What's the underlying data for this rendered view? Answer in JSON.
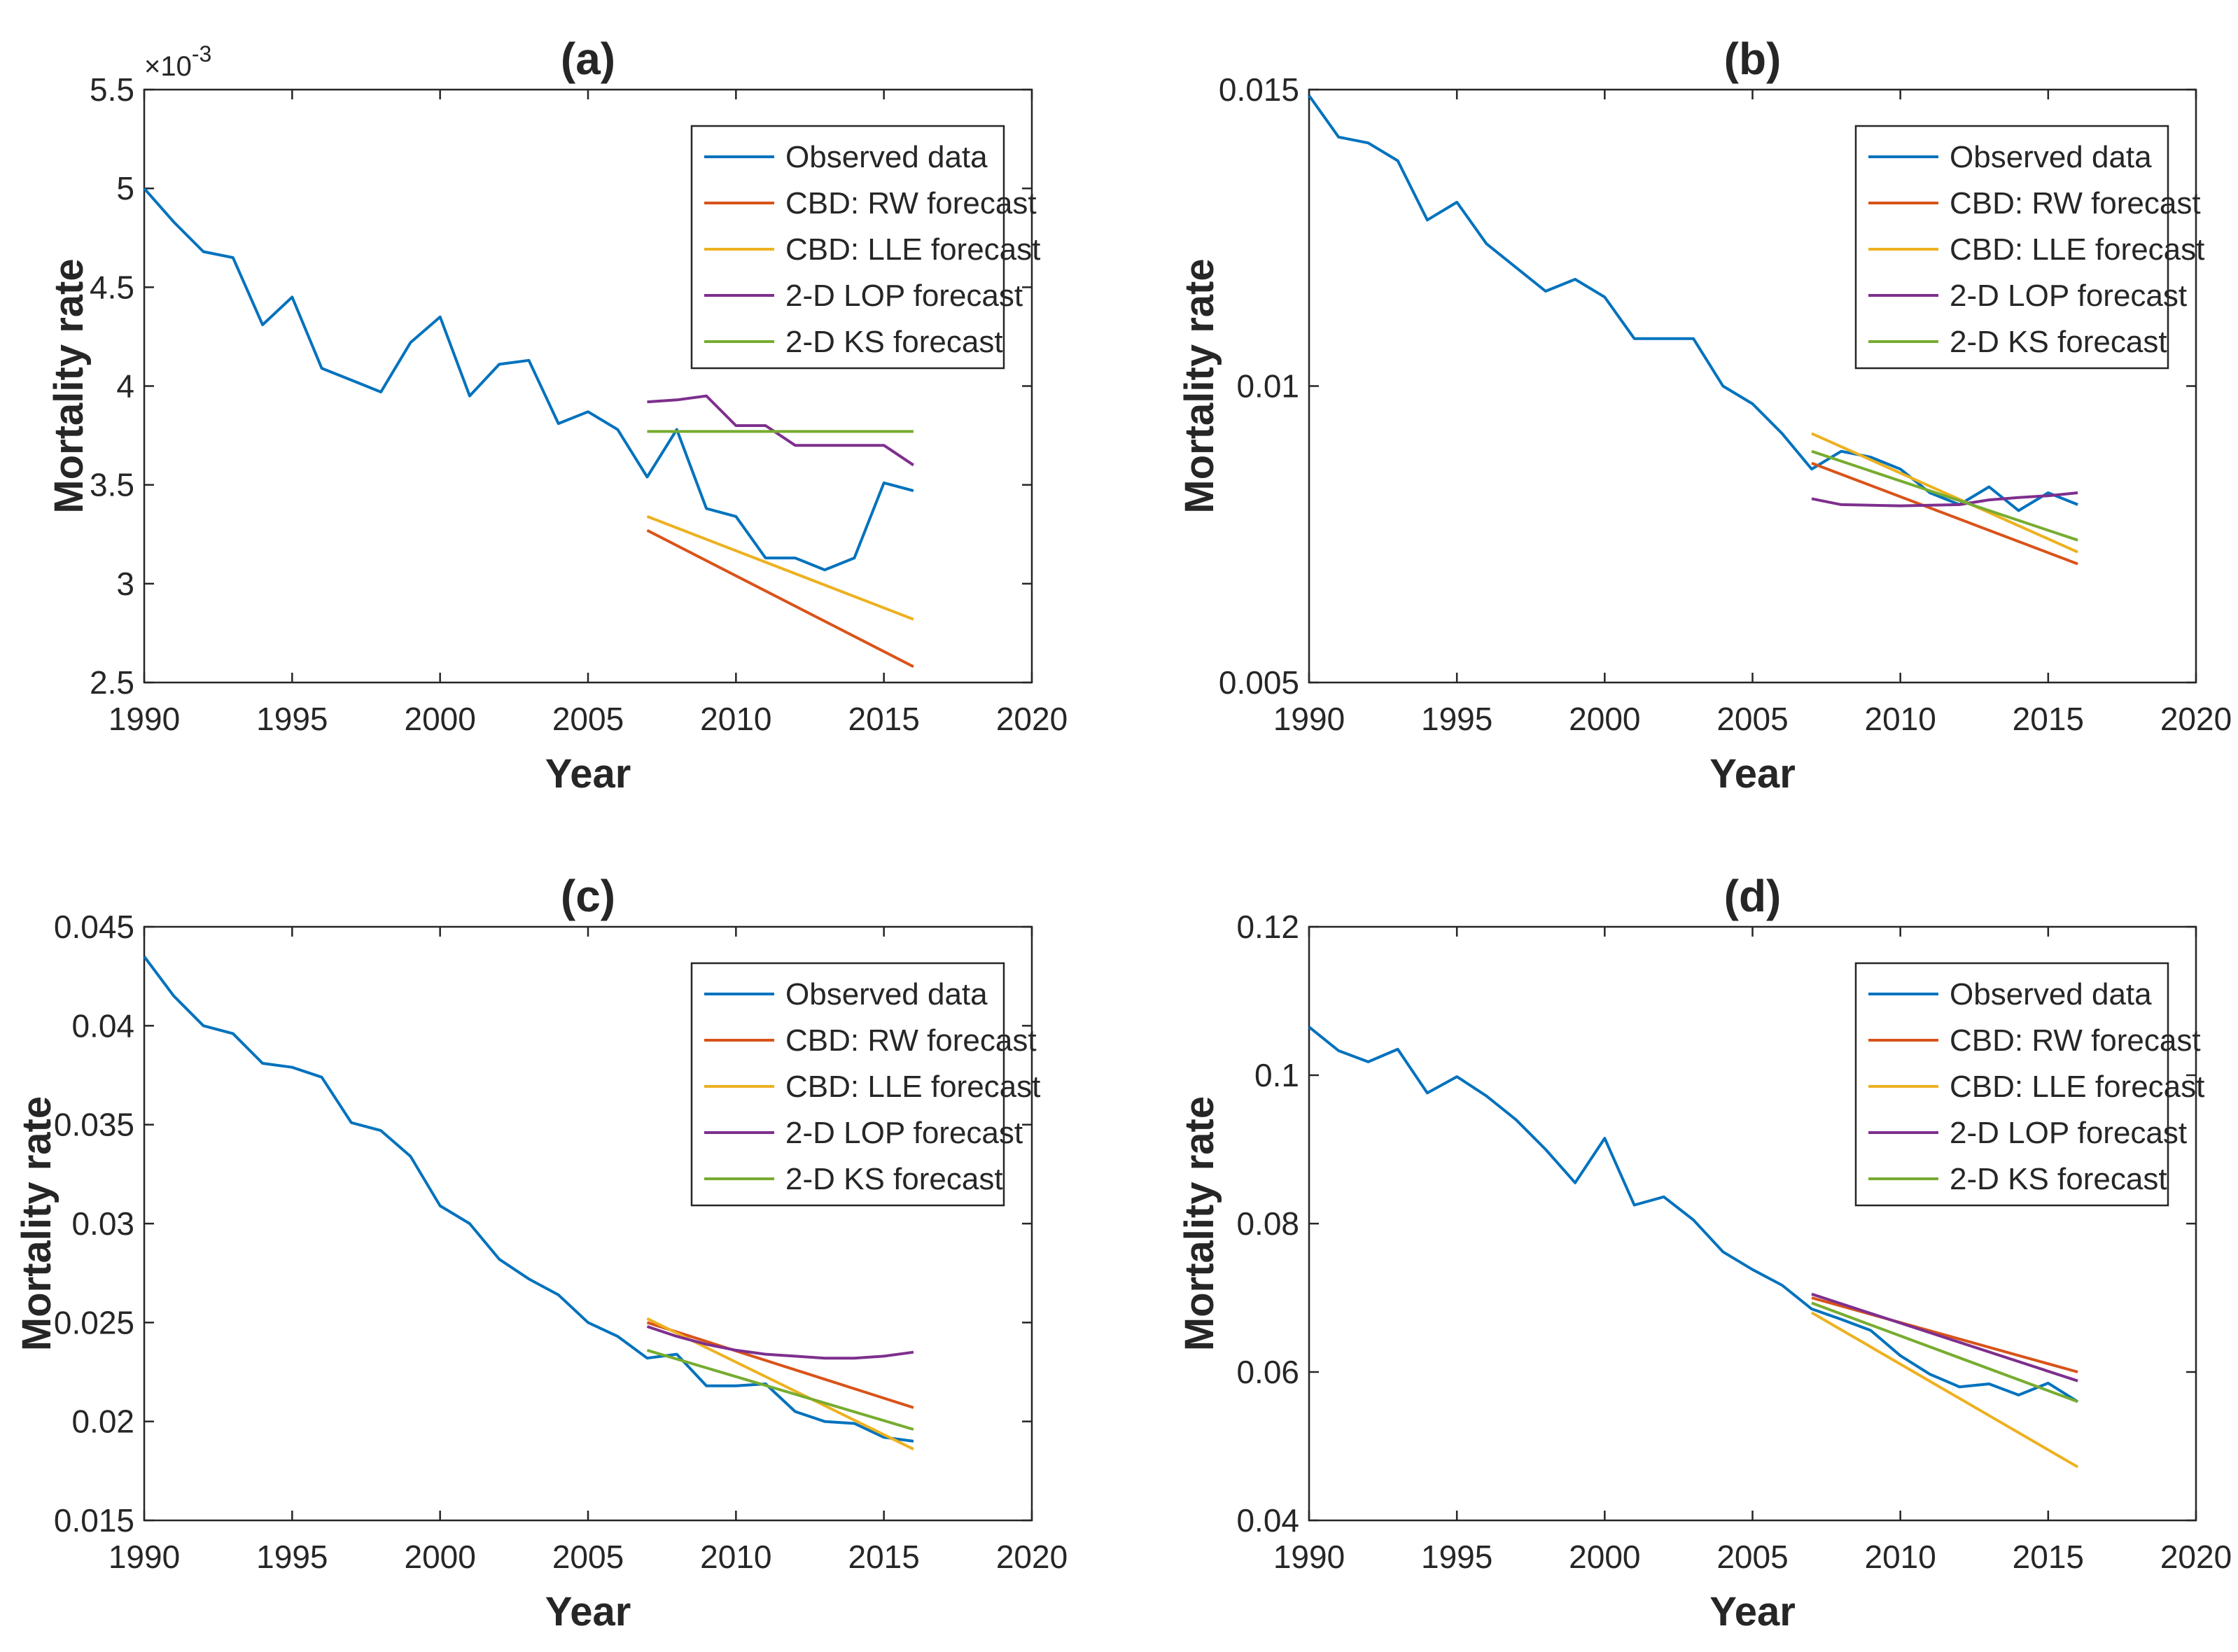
{
  "figure": {
    "legend_location": "top-right"
  },
  "chart_data": [
    {
      "type": "line",
      "title": "(a)",
      "xlabel": "Year",
      "ylabel": "Mortality rate",
      "xlim": [
        1990,
        2020
      ],
      "ylim": [
        2.5,
        5.5
      ],
      "xticks": [
        1990,
        1995,
        2000,
        2005,
        2010,
        2015,
        2020
      ],
      "xtick_labels": [
        "1990",
        "1995",
        "2000",
        "2005",
        "2010",
        "2015",
        "2020"
      ],
      "yticks": [
        2.5,
        3,
        3.5,
        4,
        4.5,
        5,
        5.5
      ],
      "ytick_labels": [
        "2.5",
        "3",
        "3.5",
        "4",
        "4.5",
        "5",
        "5.5"
      ],
      "y_exponent_label": "×10-3",
      "grid": false,
      "legend": "top-right",
      "series": [
        {
          "name": "Observed data",
          "color": "#0072BD",
          "x": [
            1990,
            1991,
            1992,
            1993,
            1994,
            1995,
            1996,
            1997,
            1998,
            1999,
            2000,
            2001,
            2002,
            2003,
            2004,
            2005,
            2006,
            2007,
            2008,
            2009,
            2010,
            2011,
            2012,
            2013,
            2014,
            2015,
            2016
          ],
          "y": [
            5.0,
            4.83,
            4.68,
            4.65,
            4.31,
            4.45,
            4.09,
            4.03,
            3.97,
            4.22,
            4.35,
            3.95,
            4.11,
            4.13,
            3.81,
            3.87,
            3.78,
            3.54,
            3.78,
            3.38,
            3.34,
            3.13,
            3.13,
            3.07,
            3.13,
            3.51,
            3.47
          ]
        },
        {
          "name": "CBD: RW forecast",
          "color": "#D95319",
          "x": [
            2007,
            2016
          ],
          "y": [
            3.27,
            2.58
          ]
        },
        {
          "name": "CBD: LLE forecast",
          "color": "#EDB120",
          "x": [
            2007,
            2016
          ],
          "y": [
            3.34,
            2.82
          ]
        },
        {
          "name": "2-D LOP forecast",
          "color": "#7E2F8E",
          "x": [
            2007,
            2008,
            2009,
            2010,
            2011,
            2012,
            2013,
            2014,
            2015,
            2016
          ],
          "y": [
            3.92,
            3.93,
            3.95,
            3.8,
            3.8,
            3.7,
            3.7,
            3.7,
            3.7,
            3.6
          ]
        },
        {
          "name": "2-D KS forecast",
          "color": "#77AC30",
          "x": [
            2007,
            2016
          ],
          "y": [
            3.77,
            3.77
          ]
        }
      ]
    },
    {
      "type": "line",
      "title": "(b)",
      "xlabel": "Year",
      "ylabel": "Mortality rate",
      "xlim": [
        1990,
        2020
      ],
      "ylim": [
        0.005,
        0.015
      ],
      "xticks": [
        1990,
        1995,
        2000,
        2005,
        2010,
        2015,
        2020
      ],
      "xtick_labels": [
        "1990",
        "1995",
        "2000",
        "2005",
        "2010",
        "2015",
        "2020"
      ],
      "yticks": [
        0.005,
        0.01,
        0.015
      ],
      "ytick_labels": [
        "0.005",
        "0.01",
        "0.015"
      ],
      "grid": false,
      "legend": "top-right",
      "series": [
        {
          "name": "Observed data",
          "color": "#0072BD",
          "x": [
            1990,
            1991,
            1992,
            1993,
            1994,
            1995,
            1996,
            1997,
            1998,
            1999,
            2000,
            2001,
            2002,
            2003,
            2004,
            2005,
            2006,
            2007,
            2008,
            2009,
            2010,
            2011,
            2012,
            2013,
            2014,
            2015,
            2016
          ],
          "y": [
            0.0149,
            0.0142,
            0.0141,
            0.0138,
            0.0128,
            0.0131,
            0.0124,
            0.012,
            0.0116,
            0.0118,
            0.0115,
            0.0108,
            0.0108,
            0.0108,
            0.01,
            0.0097,
            0.0092,
            0.0086,
            0.0089,
            0.0088,
            0.0086,
            0.0082,
            0.008,
            0.0083,
            0.0079,
            0.0082,
            0.008
          ]
        },
        {
          "name": "CBD: RW forecast",
          "color": "#D95319",
          "x": [
            2007,
            2016
          ],
          "y": [
            0.0087,
            0.007
          ]
        },
        {
          "name": "CBD: LLE forecast",
          "color": "#EDB120",
          "x": [
            2007,
            2016
          ],
          "y": [
            0.0092,
            0.0072
          ]
        },
        {
          "name": "2-D LOP forecast",
          "color": "#7E2F8E",
          "x": [
            2007,
            2008,
            2009,
            2010,
            2011,
            2012,
            2013,
            2014,
            2015,
            2016
          ],
          "y": [
            0.0081,
            0.008,
            0.00799,
            0.00798,
            0.00799,
            0.008,
            0.00808,
            0.00812,
            0.00815,
            0.0082
          ]
        },
        {
          "name": "2-D KS forecast",
          "color": "#77AC30",
          "x": [
            2007,
            2016
          ],
          "y": [
            0.0089,
            0.0074
          ]
        }
      ]
    },
    {
      "type": "line",
      "title": "(c)",
      "xlabel": "Year",
      "ylabel": "Mortality rate",
      "xlim": [
        1990,
        2020
      ],
      "ylim": [
        0.015,
        0.045
      ],
      "xticks": [
        1990,
        1995,
        2000,
        2005,
        2010,
        2015,
        2020
      ],
      "xtick_labels": [
        "1990",
        "1995",
        "2000",
        "2005",
        "2010",
        "2015",
        "2020"
      ],
      "yticks": [
        0.015,
        0.02,
        0.025,
        0.03,
        0.035,
        0.04,
        0.045
      ],
      "ytick_labels": [
        "0.015",
        "0.02",
        "0.025",
        "0.03",
        "0.035",
        "0.04",
        "0.045"
      ],
      "grid": false,
      "legend": "top-right",
      "series": [
        {
          "name": "Observed data",
          "color": "#0072BD",
          "x": [
            1990,
            1991,
            1992,
            1993,
            1994,
            1995,
            1996,
            1997,
            1998,
            1999,
            2000,
            2001,
            2002,
            2003,
            2004,
            2005,
            2006,
            2007,
            2008,
            2009,
            2010,
            2011,
            2012,
            2013,
            2014,
            2015,
            2016
          ],
          "y": [
            0.0435,
            0.0415,
            0.04,
            0.0396,
            0.0381,
            0.0379,
            0.0374,
            0.0351,
            0.0347,
            0.0334,
            0.0309,
            0.03,
            0.0282,
            0.0272,
            0.0264,
            0.025,
            0.0243,
            0.0232,
            0.0234,
            0.0218,
            0.0218,
            0.0219,
            0.0205,
            0.02,
            0.0199,
            0.0192,
            0.019
          ]
        },
        {
          "name": "CBD: RW forecast",
          "color": "#D95319",
          "x": [
            2007,
            2016
          ],
          "y": [
            0.025,
            0.0207
          ]
        },
        {
          "name": "CBD: LLE forecast",
          "color": "#EDB120",
          "x": [
            2007,
            2016
          ],
          "y": [
            0.0252,
            0.0186
          ]
        },
        {
          "name": "2-D LOP forecast",
          "color": "#7E2F8E",
          "x": [
            2007,
            2008,
            2009,
            2010,
            2011,
            2012,
            2013,
            2014,
            2015,
            2016
          ],
          "y": [
            0.0248,
            0.0243,
            0.0239,
            0.0236,
            0.0234,
            0.0233,
            0.0232,
            0.0232,
            0.0233,
            0.0235
          ]
        },
        {
          "name": "2-D KS forecast",
          "color": "#77AC30",
          "x": [
            2007,
            2016
          ],
          "y": [
            0.0236,
            0.0196
          ]
        }
      ]
    },
    {
      "type": "line",
      "title": "(d)",
      "xlabel": "Year",
      "ylabel": "Mortality rate",
      "xlim": [
        1990,
        2020
      ],
      "ylim": [
        0.04,
        0.12
      ],
      "xticks": [
        1990,
        1995,
        2000,
        2005,
        2010,
        2015,
        2020
      ],
      "xtick_labels": [
        "1990",
        "1995",
        "2000",
        "2005",
        "2010",
        "2015",
        "2020"
      ],
      "yticks": [
        0.04,
        0.06,
        0.08,
        0.1,
        0.12
      ],
      "ytick_labels": [
        "0.04",
        "0.06",
        "0.08",
        "0.1",
        "0.12"
      ],
      "grid": false,
      "legend": "top-right",
      "series": [
        {
          "name": "Observed data",
          "color": "#0072BD",
          "x": [
            1990,
            1991,
            1992,
            1993,
            1994,
            1995,
            1996,
            1997,
            1998,
            1999,
            2000,
            2001,
            2002,
            2003,
            2004,
            2005,
            2006,
            2007,
            2008,
            2009,
            2010,
            2011,
            2012,
            2013,
            2014,
            2015,
            2016
          ],
          "y": [
            0.1065,
            0.1033,
            0.1018,
            0.1035,
            0.0976,
            0.0998,
            0.0972,
            0.094,
            0.09,
            0.0855,
            0.0915,
            0.0825,
            0.0836,
            0.0805,
            0.0762,
            0.0738,
            0.0717,
            0.0685,
            0.0671,
            0.0656,
            0.0622,
            0.0597,
            0.058,
            0.0584,
            0.0569,
            0.0585,
            0.056
          ]
        },
        {
          "name": "CBD: RW forecast",
          "color": "#D95319",
          "x": [
            2007,
            2016
          ],
          "y": [
            0.07,
            0.06
          ]
        },
        {
          "name": "CBD: LLE forecast",
          "color": "#EDB120",
          "x": [
            2007,
            2016
          ],
          "y": [
            0.068,
            0.0472
          ]
        },
        {
          "name": "2-D LOP forecast",
          "color": "#7E2F8E",
          "x": [
            2007,
            2016
          ],
          "y": [
            0.0705,
            0.0588
          ]
        },
        {
          "name": "2-D KS forecast",
          "color": "#77AC30",
          "x": [
            2007,
            2016
          ],
          "y": [
            0.0693,
            0.056
          ]
        }
      ]
    }
  ]
}
